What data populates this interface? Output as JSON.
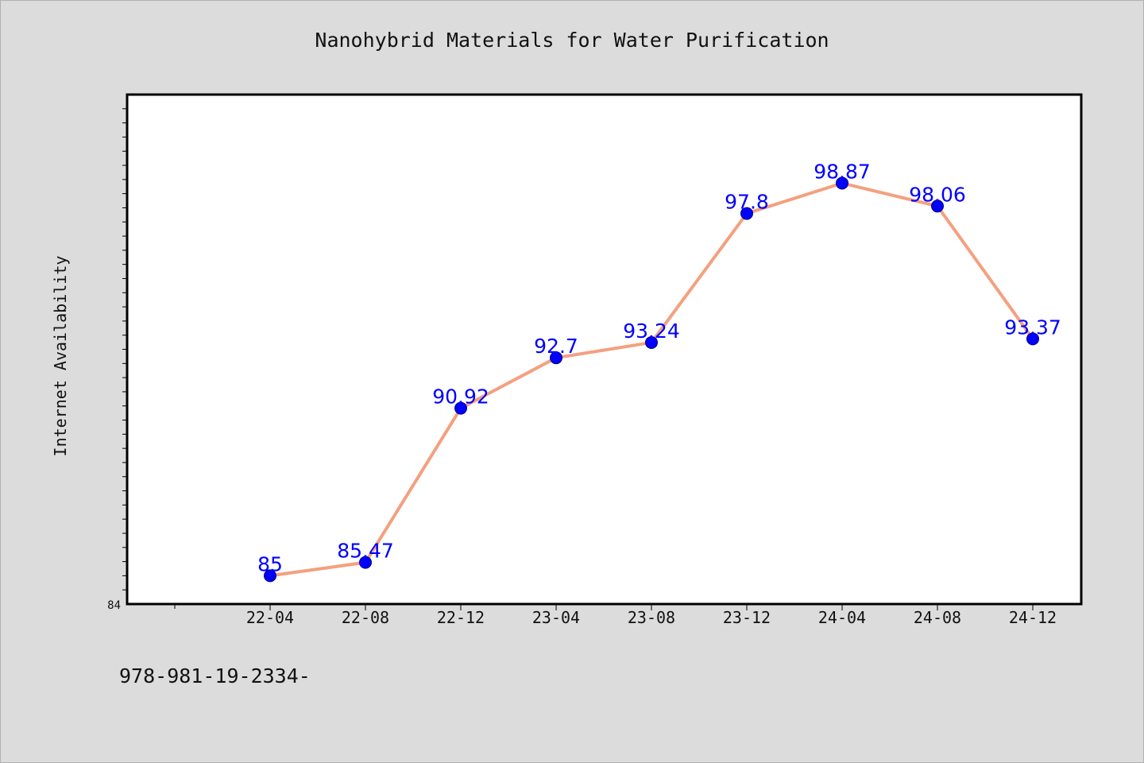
{
  "chart_data": {
    "type": "line",
    "title": "Nanohybrid Materials for Water Purification",
    "xlabel": "",
    "ylabel": "Internet Availability",
    "categories": [
      "22-04",
      "22-08",
      "22-12",
      "23-04",
      "23-08",
      "23-12",
      "24-04",
      "24-08",
      "24-12"
    ],
    "series": [
      {
        "values": [
          85,
          85.47,
          90.92,
          92.7,
          93.24,
          97.8,
          98.87,
          98.06,
          93.37
        ],
        "labels": [
          "85",
          "85.47",
          "90.92",
          "92.7",
          "93.24",
          "97.8",
          "98.87",
          "98.06",
          "93.37"
        ]
      }
    ],
    "ylim": [
      84,
      102
    ],
    "y_tick_labels": [
      "84"
    ],
    "grid": false,
    "colors": {
      "line": "#f4a07f",
      "marker": "#0000ff",
      "marker_edge": "#000080",
      "data_label": "#0000ff"
    }
  },
  "footnote": "978-981-19-2334-"
}
